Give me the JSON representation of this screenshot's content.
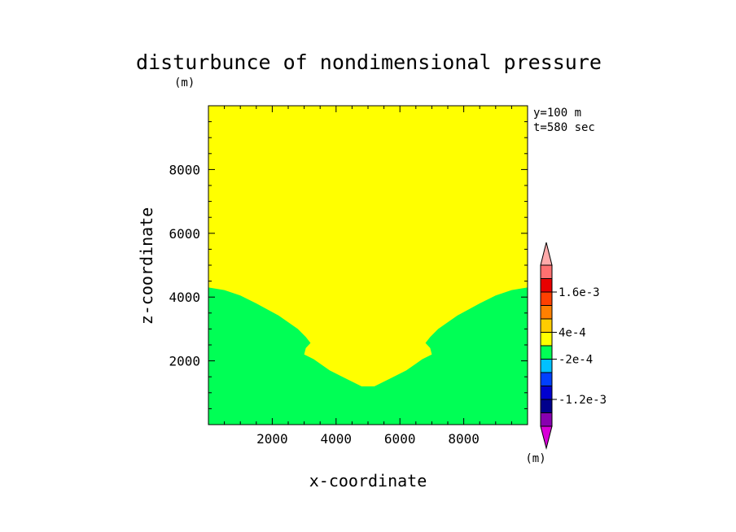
{
  "chart_data": {
    "type": "contour",
    "title": "disturbunce of nondimensional pressure",
    "xlabel": "x-coordinate",
    "ylabel": "z-coordinate",
    "x_unit": "(m)",
    "y_unit": "(m)",
    "annotations": [
      "y=100 m",
      "t=580 sec"
    ],
    "xlim": [
      0,
      10000
    ],
    "ylim": [
      0,
      10000
    ],
    "x_ticks": [
      2000,
      4000,
      6000,
      8000
    ],
    "y_ticks": [
      2000,
      4000,
      6000,
      8000
    ],
    "x_tick_labels": [
      "2000",
      "4000",
      "6000",
      "8000"
    ],
    "y_tick_labels": [
      "2000",
      "4000",
      "6000",
      "8000"
    ],
    "background_region": {
      "range": [
        -0.0002,
        0.0004
      ],
      "color": "#ffff00"
    },
    "regions": [
      {
        "range": [
          0.0004,
          0.001
        ],
        "color": "#ffff00",
        "boundary_points": [
          [
            0,
            4300
          ],
          [
            500,
            4220
          ],
          [
            1000,
            4050
          ],
          [
            1500,
            3800
          ],
          [
            2200,
            3420
          ],
          [
            2800,
            3000
          ],
          [
            3050,
            2750
          ],
          [
            3200,
            2560
          ],
          [
            3050,
            2400
          ],
          [
            3000,
            2200
          ],
          [
            3300,
            2050
          ],
          [
            3800,
            1700
          ],
          [
            4300,
            1450
          ],
          [
            4800,
            1200
          ],
          [
            5000,
            1200
          ],
          [
            5200,
            1200
          ],
          [
            5700,
            1450
          ],
          [
            6200,
            1700
          ],
          [
            6700,
            2050
          ],
          [
            7000,
            2200
          ],
          [
            6950,
            2400
          ],
          [
            6800,
            2560
          ],
          [
            6950,
            2750
          ],
          [
            7200,
            3000
          ],
          [
            7800,
            3420
          ],
          [
            8500,
            3800
          ],
          [
            9000,
            4050
          ],
          [
            9500,
            4220
          ],
          [
            10000,
            4300
          ]
        ],
        "note": "region above boundary"
      },
      {
        "range": [
          -0.0002,
          0.0004
        ],
        "color": "#00ff55",
        "note": "region below boundary"
      }
    ],
    "colorbar": {
      "levels": [
        -0.0018,
        -0.0015,
        -0.0012,
        -0.0009,
        -0.0006,
        -0.0003,
        0.0,
        0.0003,
        0.0006,
        0.0009,
        0.0012,
        0.0015,
        0.0018
      ],
      "colors": [
        "#d800d8",
        "#8800b0",
        "#00008c",
        "#0000d0",
        "#0040ff",
        "#00c0ff",
        "#00ff55",
        "#ffff00",
        "#ffcc00",
        "#ff8000",
        "#ff4000",
        "#e80000",
        "#ff7070",
        "#ffaaaa"
      ],
      "tick_labels": [
        "1.6e-3",
        "4e-4",
        "-2e-4",
        "-1.2e-3"
      ],
      "unit": "(m)"
    }
  }
}
